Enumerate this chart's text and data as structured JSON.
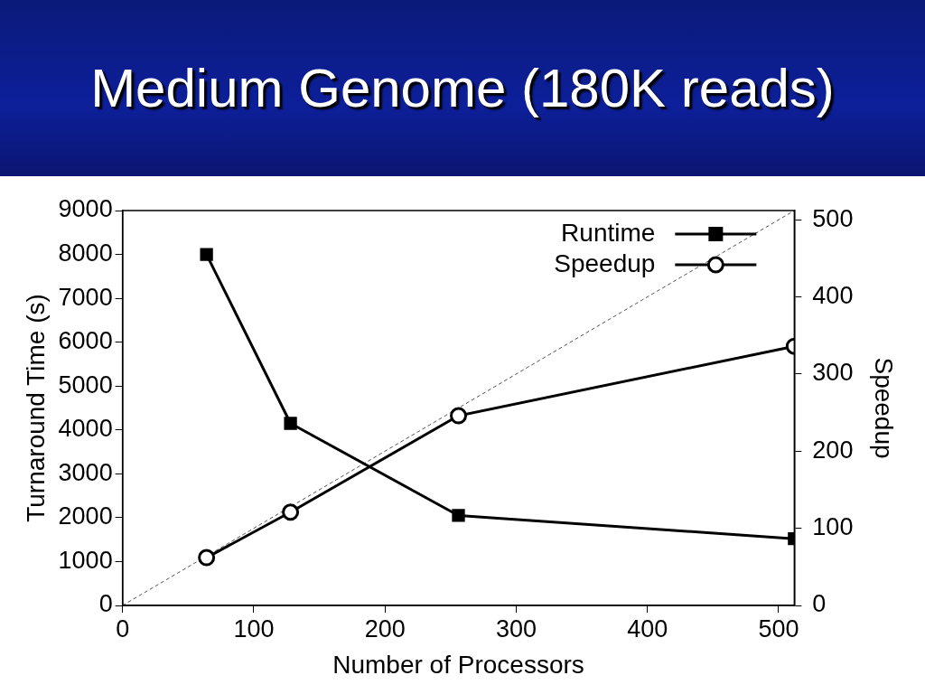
{
  "chart_data": {
    "type": "line",
    "title": "Medium Genome (180K reads)",
    "xlabel": "Number of Processors",
    "ylabel": "Turnaround Time (s)",
    "y2label": "Speedup",
    "series": [
      {
        "name": "Runtime",
        "color": "#000000",
        "x": [
          64,
          128,
          256,
          512
        ],
        "values": [
          8000,
          4150,
          2050,
          1520
        ],
        "marker": "square",
        "line_style": "solid"
      },
      {
        "name": "Speedup",
        "color": "#000000",
        "x": [
          64,
          128,
          256,
          512
        ],
        "values": [
          62,
          121,
          246,
          336
        ],
        "axis": "y2",
        "marker": "circle",
        "line_style": "solid"
      },
      {
        "color": "#555555",
        "x": [
          0,
          512
        ],
        "values": [
          0,
          512
        ],
        "axis": "y2",
        "marker": "none",
        "line_style": "dashed"
      }
    ],
    "xlim": [
      0,
      512
    ],
    "xticks": [
      0,
      100,
      200,
      300,
      400,
      500
    ],
    "ylim": [
      0,
      9000
    ],
    "yticks": [
      0,
      1000,
      2000,
      3000,
      4000,
      5000,
      6000,
      7000,
      8000,
      9000
    ],
    "y2lim": [
      0,
      512
    ],
    "y2ticks": [
      0,
      100,
      200,
      300,
      400,
      500
    ],
    "grid": false,
    "legend": "top right"
  }
}
